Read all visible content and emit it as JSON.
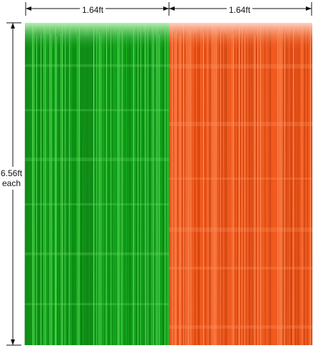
{
  "dimensions": {
    "width_left": "1.64ft",
    "width_right": "1.64ft",
    "height_value": "6.56ft",
    "height_note": "each"
  },
  "curtains": [
    {
      "color_name": "green",
      "base": "#13a31b",
      "light": "#6fe06a",
      "dark": "#0a6f10"
    },
    {
      "color_name": "orange",
      "base": "#f05a1e",
      "light": "#ff9a6a",
      "dark": "#b8380c"
    }
  ]
}
